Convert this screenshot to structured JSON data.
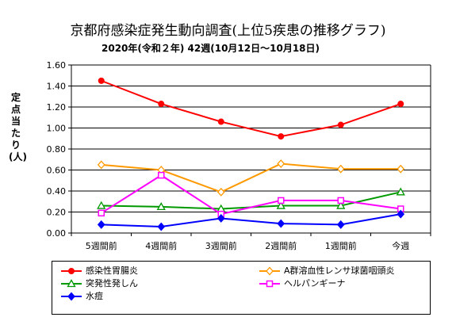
{
  "chart_data": {
    "type": "line",
    "title": "京都府感染症発生動向調査(上位5疾患の推移グラフ)",
    "subtitle": "2020年(令和２年) 42週(10月12日～10月18日)",
    "xlabel": "",
    "ylabel": "定点当たり(人)",
    "categories": [
      "5週間前",
      "4週間前",
      "3週間前",
      "2週間前",
      "1週間前",
      "今週"
    ],
    "ylim": [
      0,
      1.6
    ],
    "yticks": [
      "0.00",
      "0.20",
      "0.40",
      "0.60",
      "0.80",
      "1.00",
      "1.20",
      "1.40",
      "1.60"
    ],
    "legend_position": "bottom",
    "series": [
      {
        "name": "感染性胃腸炎",
        "color": "#ff0000",
        "marker": "circle",
        "values": [
          1.45,
          1.23,
          1.06,
          0.92,
          1.03,
          1.23
        ]
      },
      {
        "name": "A群溶血性レンサ球菌咽頭炎",
        "color": "#ff9900",
        "marker": "diamond",
        "values": [
          0.65,
          0.6,
          0.39,
          0.66,
          0.61,
          0.61
        ]
      },
      {
        "name": "突発性発しん",
        "color": "#009900",
        "marker": "triangle",
        "values": [
          0.26,
          0.25,
          0.23,
          0.26,
          0.26,
          0.39
        ]
      },
      {
        "name": "ヘルパンギーナ",
        "color": "#ff00ff",
        "marker": "square",
        "values": [
          0.19,
          0.55,
          0.18,
          0.31,
          0.31,
          0.23
        ]
      },
      {
        "name": "水痘",
        "color": "#0000ff",
        "marker": "diamond",
        "values": [
          0.08,
          0.06,
          0.14,
          0.09,
          0.08,
          0.18
        ]
      }
    ]
  }
}
